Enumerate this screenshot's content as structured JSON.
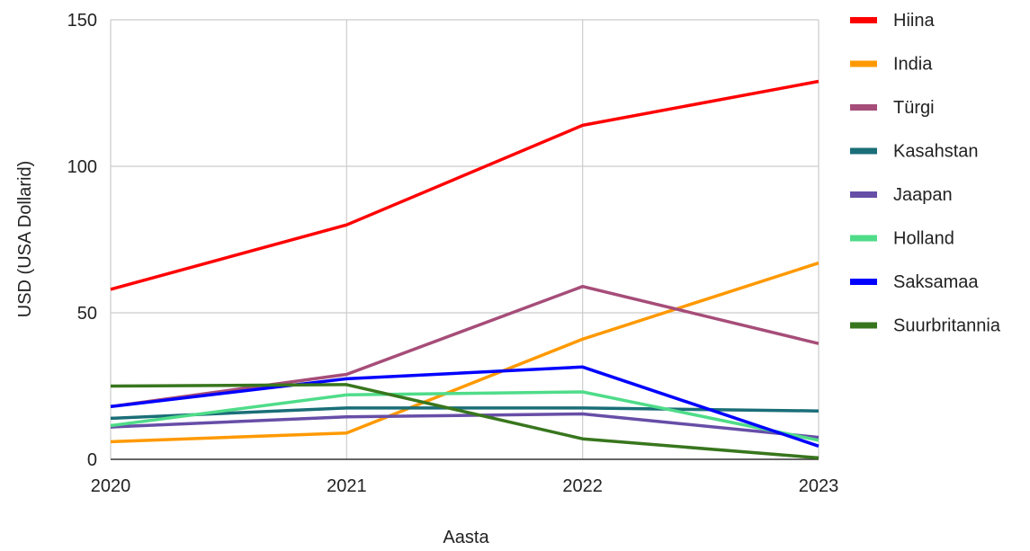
{
  "chart_data": {
    "type": "line",
    "title": "",
    "xlabel": "Aasta",
    "ylabel": "USD (USA Dollarid)",
    "categories": [
      "2020",
      "2021",
      "2022",
      "2023"
    ],
    "ylim": [
      0,
      150
    ],
    "yticks": [
      "0",
      "50",
      "100",
      "150"
    ],
    "grid": true,
    "legend_position": "right",
    "series": [
      {
        "name": "Hiina",
        "color": "#ff0000",
        "values": [
          58,
          80,
          114,
          129
        ]
      },
      {
        "name": "India",
        "color": "#ff9900",
        "values": [
          6,
          9,
          41,
          67
        ]
      },
      {
        "name": "Türgi",
        "color": "#a64d79",
        "values": [
          18,
          29,
          59,
          39.5
        ]
      },
      {
        "name": "Kasahstan",
        "color": "#1a6e78",
        "values": [
          14,
          17.5,
          17.5,
          16.5
        ]
      },
      {
        "name": "Jaapan",
        "color": "#674ea7",
        "values": [
          11,
          14.5,
          15.5,
          7.5
        ]
      },
      {
        "name": "Holland",
        "color": "#4fdc89",
        "values": [
          11.5,
          22,
          23,
          6.5
        ]
      },
      {
        "name": "Saksamaa",
        "color": "#0000ff",
        "values": [
          18,
          27.5,
          31.5,
          4.5
        ]
      },
      {
        "name": "Suurbritannia",
        "color": "#38761d",
        "values": [
          25,
          25.5,
          7,
          0.5
        ]
      }
    ]
  }
}
